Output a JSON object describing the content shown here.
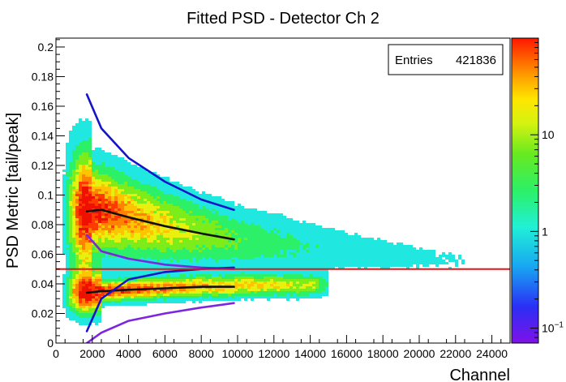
{
  "chart_data": {
    "type": "heatmap",
    "title": "Fitted PSD - Detector Ch 2",
    "xlabel": "Channel",
    "ylabel": "PSD Metric [tail/peak]",
    "xlim": [
      0,
      25000
    ],
    "ylim": [
      0,
      0.206
    ],
    "x_ticks": [
      "0",
      "2000",
      "4000",
      "6000",
      "8000",
      "10000",
      "12000",
      "14000",
      "16000",
      "18000",
      "20000",
      "22000",
      "24000"
    ],
    "y_ticks": [
      "0",
      "0.02",
      "0.04",
      "0.06",
      "0.08",
      "0.1",
      "0.12",
      "0.14",
      "0.16",
      "0.18",
      "0.2"
    ],
    "stats": {
      "label": "Entries",
      "value": "421836"
    },
    "colorbar": {
      "scale": "log",
      "range": [
        0.07,
        100
      ],
      "ticks": [
        "10^{-1}",
        "1",
        "10"
      ]
    },
    "threshold_line": {
      "y": 0.05,
      "color": "#ee1111"
    },
    "bands": [
      {
        "name": "upper",
        "center": [
          [
            1700,
            0.089
          ],
          [
            2500,
            0.09
          ],
          [
            4000,
            0.085
          ],
          [
            6000,
            0.079
          ],
          [
            8000,
            0.074
          ],
          [
            9800,
            0.07
          ]
        ],
        "upper": [
          [
            1700,
            0.168
          ],
          [
            2500,
            0.145
          ],
          [
            4000,
            0.125
          ],
          [
            6000,
            0.109
          ],
          [
            8000,
            0.097
          ],
          [
            9800,
            0.09
          ]
        ],
        "lower": [
          [
            1700,
            0.073
          ],
          [
            2500,
            0.062
          ],
          [
            4000,
            0.057
          ],
          [
            6000,
            0.053
          ],
          [
            8000,
            0.051
          ],
          [
            9800,
            0.05
          ]
        ]
      },
      {
        "name": "lower",
        "center": [
          [
            1700,
            0.034
          ],
          [
            2500,
            0.035
          ],
          [
            4000,
            0.036
          ],
          [
            6000,
            0.037
          ],
          [
            8000,
            0.038
          ],
          [
            9800,
            0.038
          ]
        ],
        "upper": [
          [
            1700,
            0.008
          ],
          [
            2500,
            0.03
          ],
          [
            4000,
            0.043
          ],
          [
            6000,
            0.048
          ],
          [
            8000,
            0.05
          ],
          [
            9800,
            0.051
          ]
        ],
        "lower": [
          [
            1700,
            0.0
          ],
          [
            2500,
            0.007
          ],
          [
            4000,
            0.015
          ],
          [
            6000,
            0.02
          ],
          [
            8000,
            0.024
          ],
          [
            9800,
            0.027
          ]
        ]
      }
    ],
    "colors": {
      "center": "#111111",
      "upper_sigma": "#1414c8",
      "lower_sigma": "#7d26e0"
    }
  }
}
